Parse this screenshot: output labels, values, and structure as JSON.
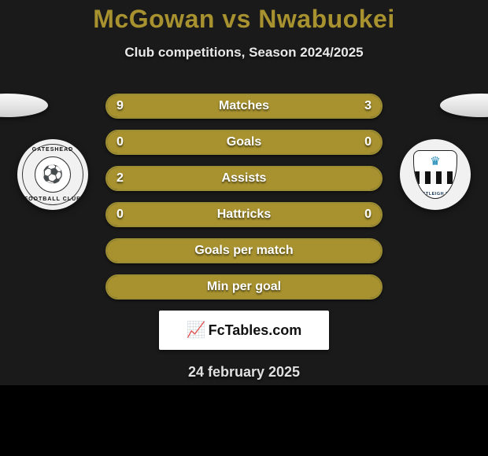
{
  "colors": {
    "accent": "#a8922f",
    "bar_border": "#9c8d34",
    "bg_dark": "#1a1a1a",
    "text_light": "#e8e8e8"
  },
  "title_left": "McGowan",
  "title_mid": " vs ",
  "title_right": "Nwabuokei",
  "subtitle": "Club competitions, Season 2024/2025",
  "crest_left": {
    "top": "GATESHEAD",
    "bottom": "FOOTBALL CLUB",
    "center_glyph": "⚽"
  },
  "crest_right": {
    "crown_glyph": "♛",
    "bottom": "EASTLEIGH F.C."
  },
  "bars": [
    {
      "label": "Matches",
      "left": "9",
      "right": "3",
      "left_val": 9,
      "right_val": 3,
      "max": 12,
      "show_vals": true,
      "type": "split"
    },
    {
      "label": "Goals",
      "left": "0",
      "right": "0",
      "show_vals": true,
      "type": "full"
    },
    {
      "label": "Assists",
      "left": "2",
      "right": "",
      "show_vals": true,
      "type": "full"
    },
    {
      "label": "Hattricks",
      "left": "0",
      "right": "0",
      "show_vals": true,
      "type": "full"
    },
    {
      "label": "Goals per match",
      "show_vals": false,
      "type": "full"
    },
    {
      "label": "Min per goal",
      "show_vals": false,
      "type": "full"
    }
  ],
  "brand_label": "FcTables.com",
  "date": "24 february 2025"
}
